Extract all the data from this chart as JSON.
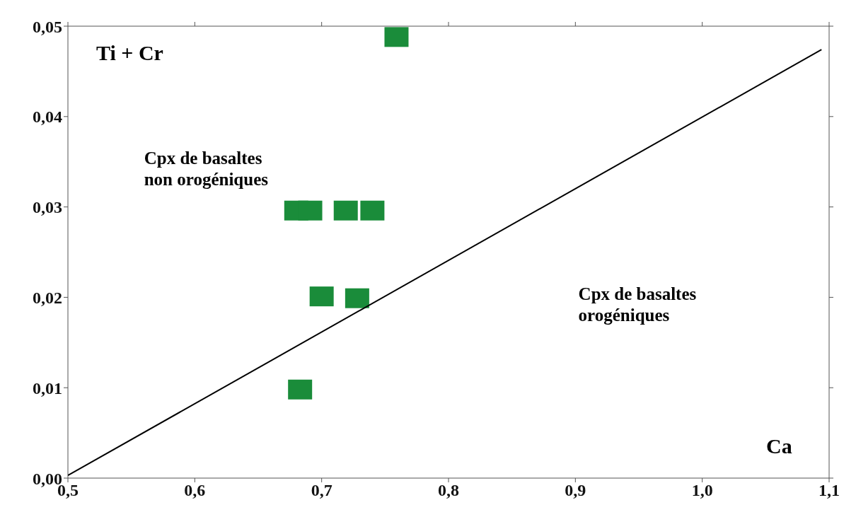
{
  "chart_data": {
    "type": "scatter",
    "xlabel": "Ca",
    "ylabel": "Ti + Cr",
    "annotations": [
      "Cpx de basaltes\nnon orogéniques",
      "Cpx de basaltes\norogéniques"
    ],
    "series": [
      {
        "color": "#1a8c3a",
        "x": [
          0.759,
          0.68,
          0.691,
          0.719,
          0.74,
          0.7,
          0.728,
          0.683
        ],
        "values": [
          0.0488,
          0.0296,
          0.0296,
          0.0296,
          0.0296,
          0.0201,
          0.0199,
          0.0098
        ]
      },
      {
        "type": "line",
        "color": "#000000",
        "x": [
          0.5,
          1.094
        ],
        "values": [
          0.0003,
          0.0474
        ],
        "marker": "none",
        "line_style": "solid"
      }
    ],
    "xlim": [
      0.5,
      1.1
    ],
    "xticks": [
      {
        "value": 0.5,
        "label": "0,5"
      },
      {
        "value": 0.6,
        "label": "0,6"
      },
      {
        "value": 0.7,
        "label": "0,7"
      },
      {
        "value": 0.8,
        "label": "0,8"
      },
      {
        "value": 0.9,
        "label": "0,9"
      },
      {
        "value": 1.0,
        "label": "1,0"
      },
      {
        "value": 1.1,
        "label": "1,1"
      }
    ],
    "ylim": [
      0,
      0.05
    ],
    "yticks": [
      {
        "value": 0,
        "label": "0,00"
      },
      {
        "value": 0.01,
        "label": "0,01"
      },
      {
        "value": 0.02,
        "label": "0,02"
      },
      {
        "value": 0.03,
        "label": "0,03"
      },
      {
        "value": 0.04,
        "label": "0,04"
      },
      {
        "value": 0.05,
        "label": "0,05"
      }
    ],
    "marker": "square"
  }
}
